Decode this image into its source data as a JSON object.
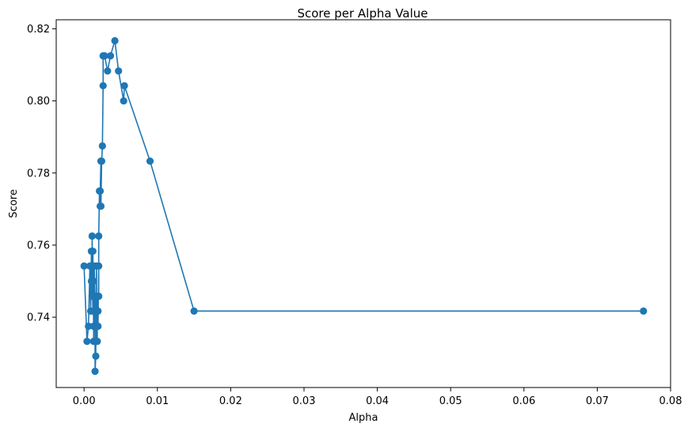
{
  "chart_data": {
    "type": "line",
    "title": "Score per Alpha Value",
    "xlabel": "Alpha",
    "ylabel": "Score",
    "xlim": [
      -0.0038,
      0.08
    ],
    "ylim": [
      0.7205,
      0.8225
    ],
    "xticks": [
      0.0,
      0.01,
      0.02,
      0.03,
      0.04,
      0.05,
      0.06,
      0.07,
      0.08
    ],
    "xtick_labels": [
      "0.00",
      "0.01",
      "0.02",
      "0.03",
      "0.04",
      "0.05",
      "0.06",
      "0.07",
      "0.08"
    ],
    "yticks": [
      0.74,
      0.76,
      0.78,
      0.8,
      0.82
    ],
    "ytick_labels": [
      "0.74",
      "0.76",
      "0.78",
      "0.80",
      "0.82"
    ],
    "grid": false,
    "marker": "circle",
    "color": "#1f77b4",
    "series": [
      {
        "x": [
          0.0,
          0.0004,
          0.0006,
          0.0008,
          0.0009,
          0.001,
          0.001,
          0.0011,
          0.0011,
          0.0012,
          0.0012,
          0.0013,
          0.0013,
          0.0013,
          0.0014,
          0.0014,
          0.0015,
          0.0015,
          0.0015,
          0.0016,
          0.0016,
          0.0016,
          0.0017,
          0.0017,
          0.0017,
          0.0018,
          0.0018,
          0.0019,
          0.0019,
          0.002,
          0.002,
          0.002,
          0.0021,
          0.0022,
          0.0022,
          0.0023,
          0.0023,
          0.0024,
          0.0025,
          0.0026,
          0.0026,
          0.0028,
          0.0032,
          0.0036,
          0.0042,
          0.0047,
          0.0054,
          0.0055,
          0.009,
          0.015,
          0.0763
        ],
        "y": [
          0.7542,
          0.7333,
          0.7375,
          0.7542,
          0.7417,
          0.7583,
          0.75,
          0.7458,
          0.7625,
          0.7417,
          0.7583,
          0.7375,
          0.75,
          0.7333,
          0.7458,
          0.7542,
          0.7417,
          0.7375,
          0.725,
          0.7292,
          0.7458,
          0.7333,
          0.7542,
          0.7417,
          0.7375,
          0.7333,
          0.7458,
          0.7417,
          0.7375,
          0.7542,
          0.7458,
          0.7625,
          0.775,
          0.7708,
          0.775,
          0.7833,
          0.7708,
          0.7833,
          0.7875,
          0.8042,
          0.8125,
          0.8125,
          0.8083,
          0.8125,
          0.8167,
          0.8083,
          0.8,
          0.8042,
          0.7833,
          0.7417,
          0.7417
        ]
      }
    ]
  }
}
